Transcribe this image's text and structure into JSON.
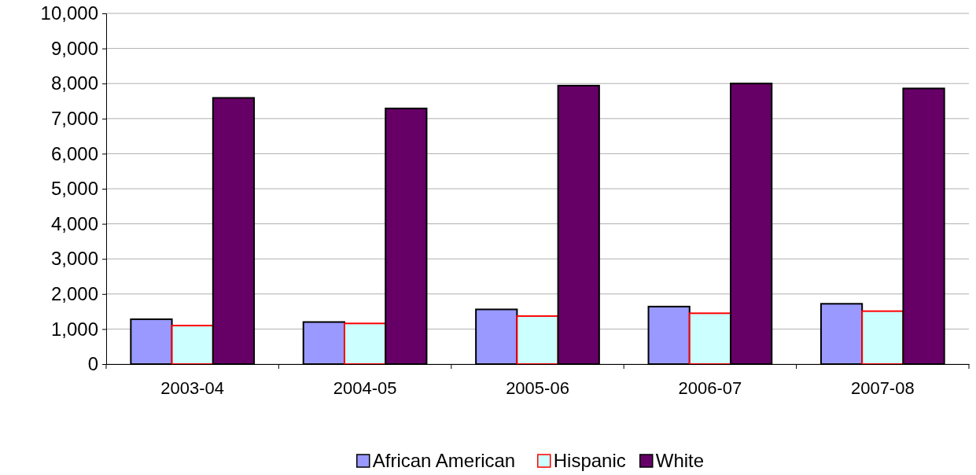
{
  "chart_data": {
    "type": "bar",
    "categories": [
      "2003-04",
      "2004-05",
      "2005-06",
      "2006-07",
      "2007-08"
    ],
    "series": [
      {
        "name": "African American",
        "color": "#9999ff",
        "values": [
          1280,
          1200,
          1560,
          1640,
          1720
        ]
      },
      {
        "name": "Hispanic",
        "color": "#ccffff",
        "values": [
          1100,
          1160,
          1370,
          1450,
          1510
        ]
      },
      {
        "name": "White",
        "color": "#660066",
        "values": [
          7590,
          7290,
          7940,
          8000,
          7860
        ]
      }
    ],
    "ylim": [
      0,
      10000
    ],
    "yticks": [
      {
        "value": 0,
        "label": "0"
      },
      {
        "value": 1000,
        "label": "1,000"
      },
      {
        "value": 2000,
        "label": "2,000"
      },
      {
        "value": 3000,
        "label": "3,000"
      },
      {
        "value": 4000,
        "label": "4,000"
      },
      {
        "value": 5000,
        "label": "5,000"
      },
      {
        "value": 6000,
        "label": "6,000"
      },
      {
        "value": 7000,
        "label": "7,000"
      },
      {
        "value": 8000,
        "label": "8,000"
      },
      {
        "value": 9000,
        "label": "9,000"
      },
      {
        "value": 10000,
        "label": "10,000"
      }
    ],
    "grid": "y",
    "legend": "bottom"
  }
}
